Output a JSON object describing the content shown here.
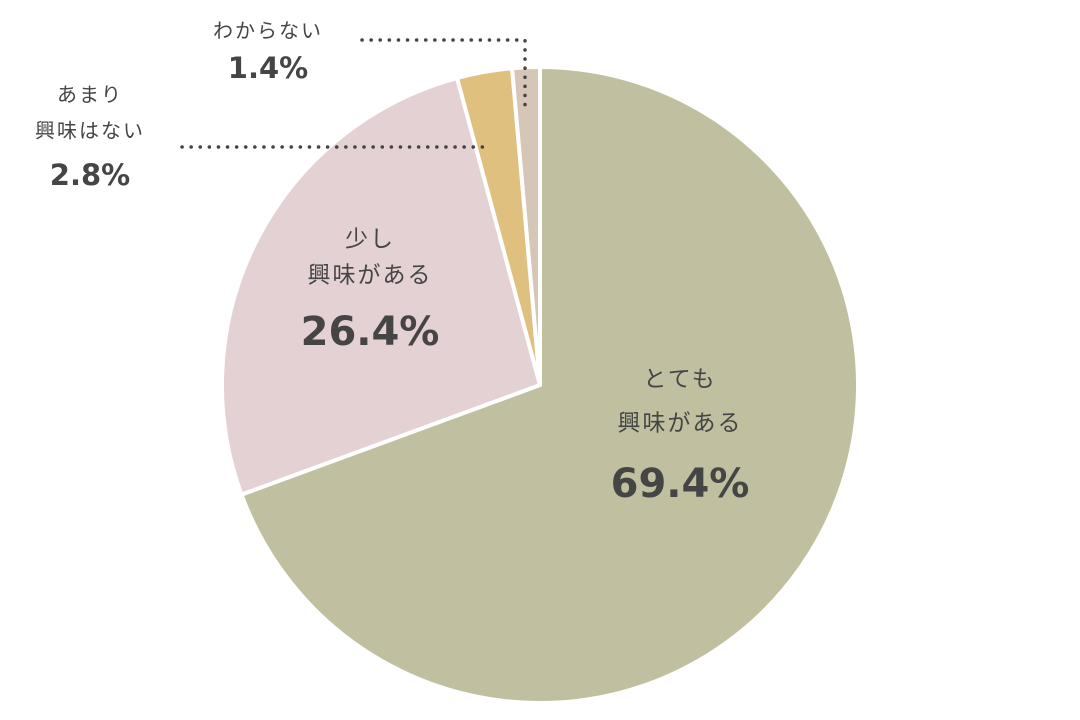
{
  "chart_data": {
    "type": "pie",
    "categories": [
      [
        "とても",
        "興味がある"
      ],
      [
        "少し",
        "興味がある"
      ],
      [
        "あまり",
        "興味はない"
      ],
      [
        "わからない"
      ]
    ],
    "values": [
      69.4,
      26.4,
      2.8,
      1.4
    ],
    "value_labels": [
      "69.4%",
      "26.4%",
      "2.8%",
      "1.4%"
    ],
    "colors": [
      "#c0c0a0",
      "#e3d1d3",
      "#e0c07f",
      "#d6c6b8"
    ]
  }
}
